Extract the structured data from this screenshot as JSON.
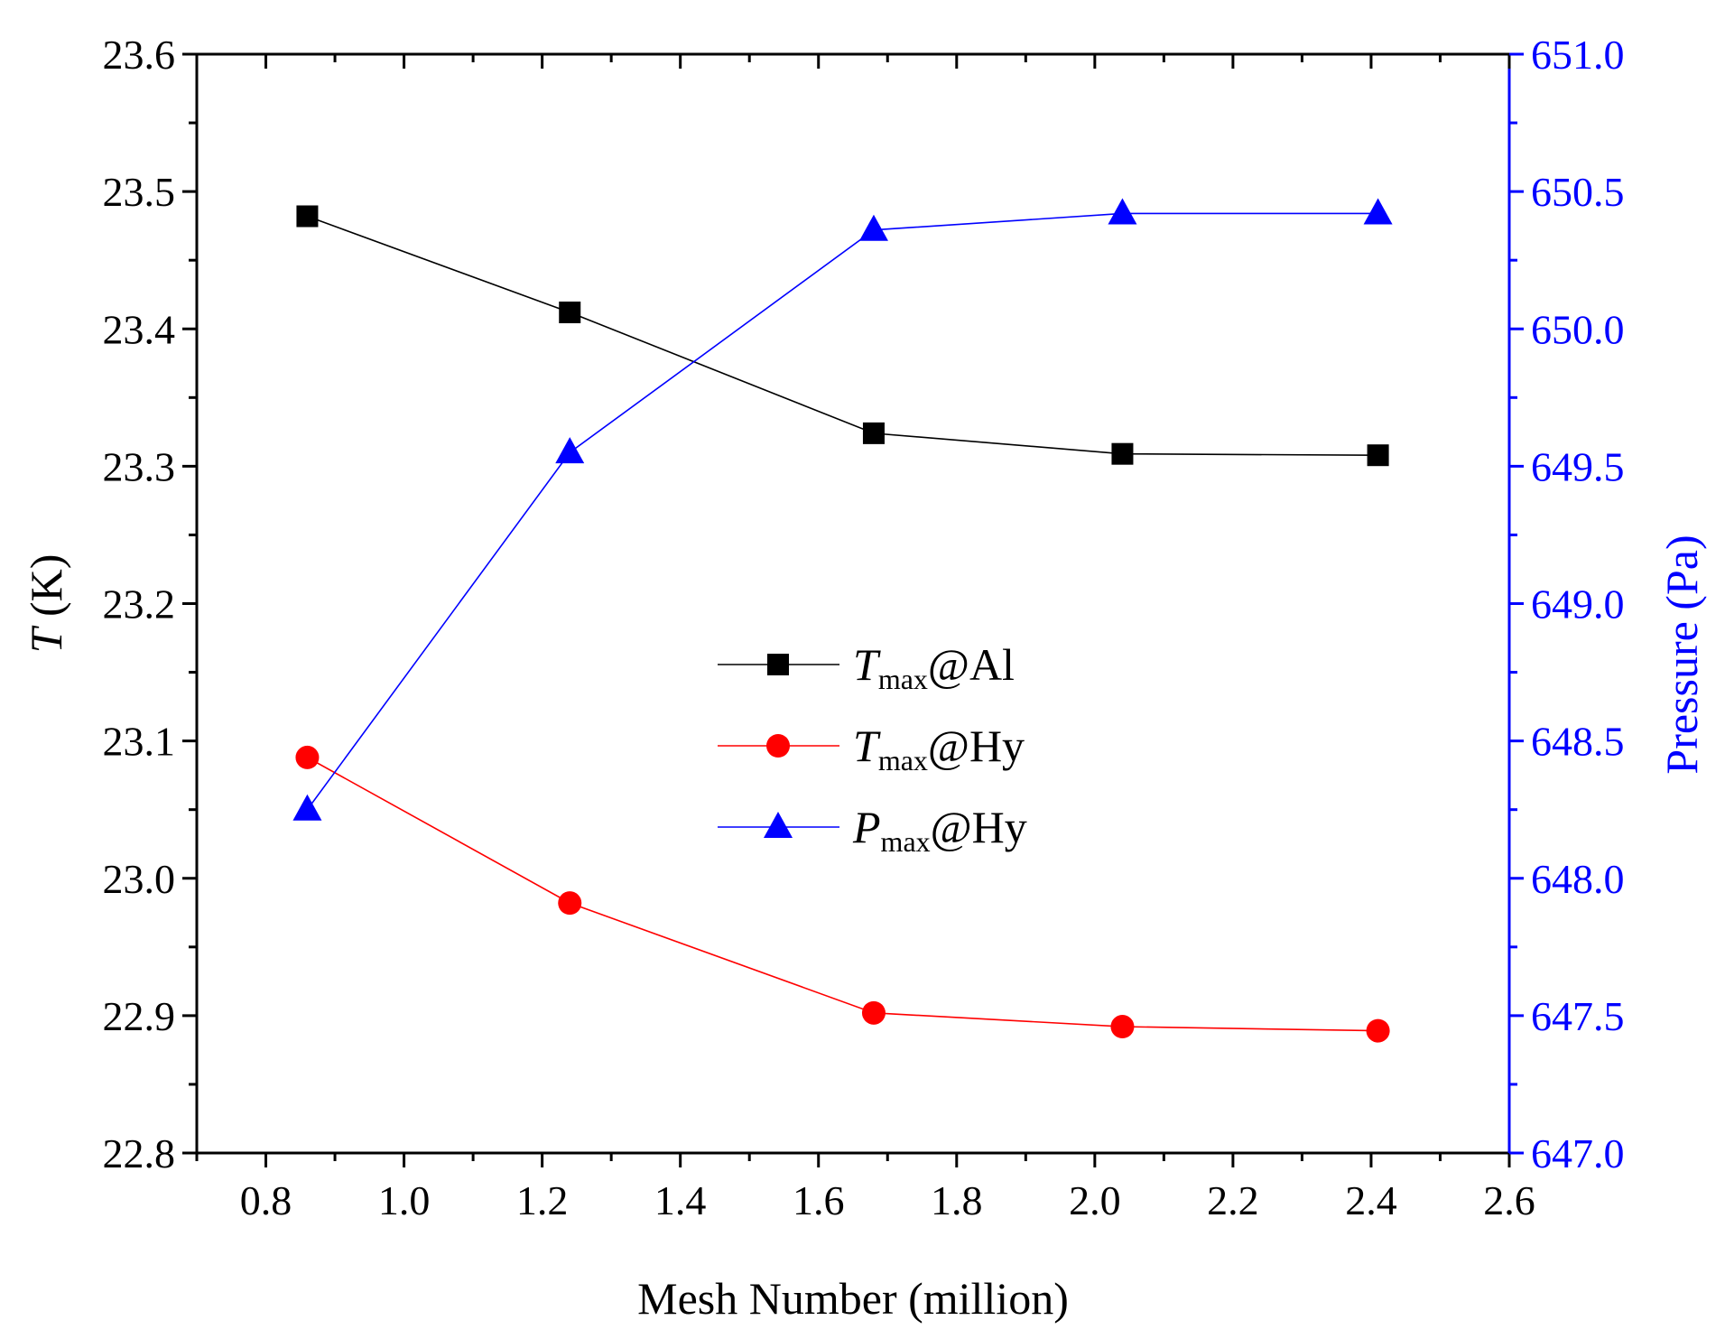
{
  "chart_data": {
    "type": "line",
    "x": [
      0.86,
      1.24,
      1.68,
      2.04,
      2.41
    ],
    "xlabel": "Mesh Number (million)",
    "xlim": [
      0.7,
      2.6
    ],
    "x_ticks": [
      "0.8",
      "1.0",
      "1.2",
      "1.4",
      "1.6",
      "1.8",
      "2.0",
      "2.2",
      "2.4",
      "2.6"
    ],
    "ylabel_left": {
      "symbol": "T",
      "unit": " (K)"
    },
    "ylim_left": [
      22.8,
      23.6
    ],
    "y_ticks_left": [
      "22.8",
      "22.9",
      "23.0",
      "23.1",
      "23.2",
      "23.3",
      "23.4",
      "23.5",
      "23.6"
    ],
    "ylabel_right": "Pressure (Pa)",
    "ylim_right": [
      647.0,
      651.0
    ],
    "y_ticks_right": [
      "647.0",
      "647.5",
      "648.0",
      "648.5",
      "649.0",
      "649.5",
      "650.0",
      "650.5",
      "651.0"
    ],
    "grid": false,
    "legend_position": "center",
    "series": [
      {
        "name": "T_max@Al",
        "symbol": "T",
        "sub": "max",
        "suffix": "@Al",
        "axis": "left",
        "marker": "square",
        "color": "#000000",
        "values": [
          23.482,
          23.412,
          23.324,
          23.309,
          23.308
        ]
      },
      {
        "name": "T_max@Hy",
        "symbol": "T",
        "sub": "max",
        "suffix": "@Hy",
        "axis": "left",
        "marker": "circle",
        "color": "#ff0000",
        "values": [
          23.088,
          22.982,
          22.902,
          22.892,
          22.889
        ]
      },
      {
        "name": "P_max@Hy",
        "symbol": "P",
        "sub": "max",
        "suffix": "@Hy",
        "axis": "right",
        "marker": "triangle",
        "color": "#0000ff",
        "values": [
          648.25,
          649.55,
          650.36,
          650.42,
          650.42
        ]
      }
    ]
  }
}
